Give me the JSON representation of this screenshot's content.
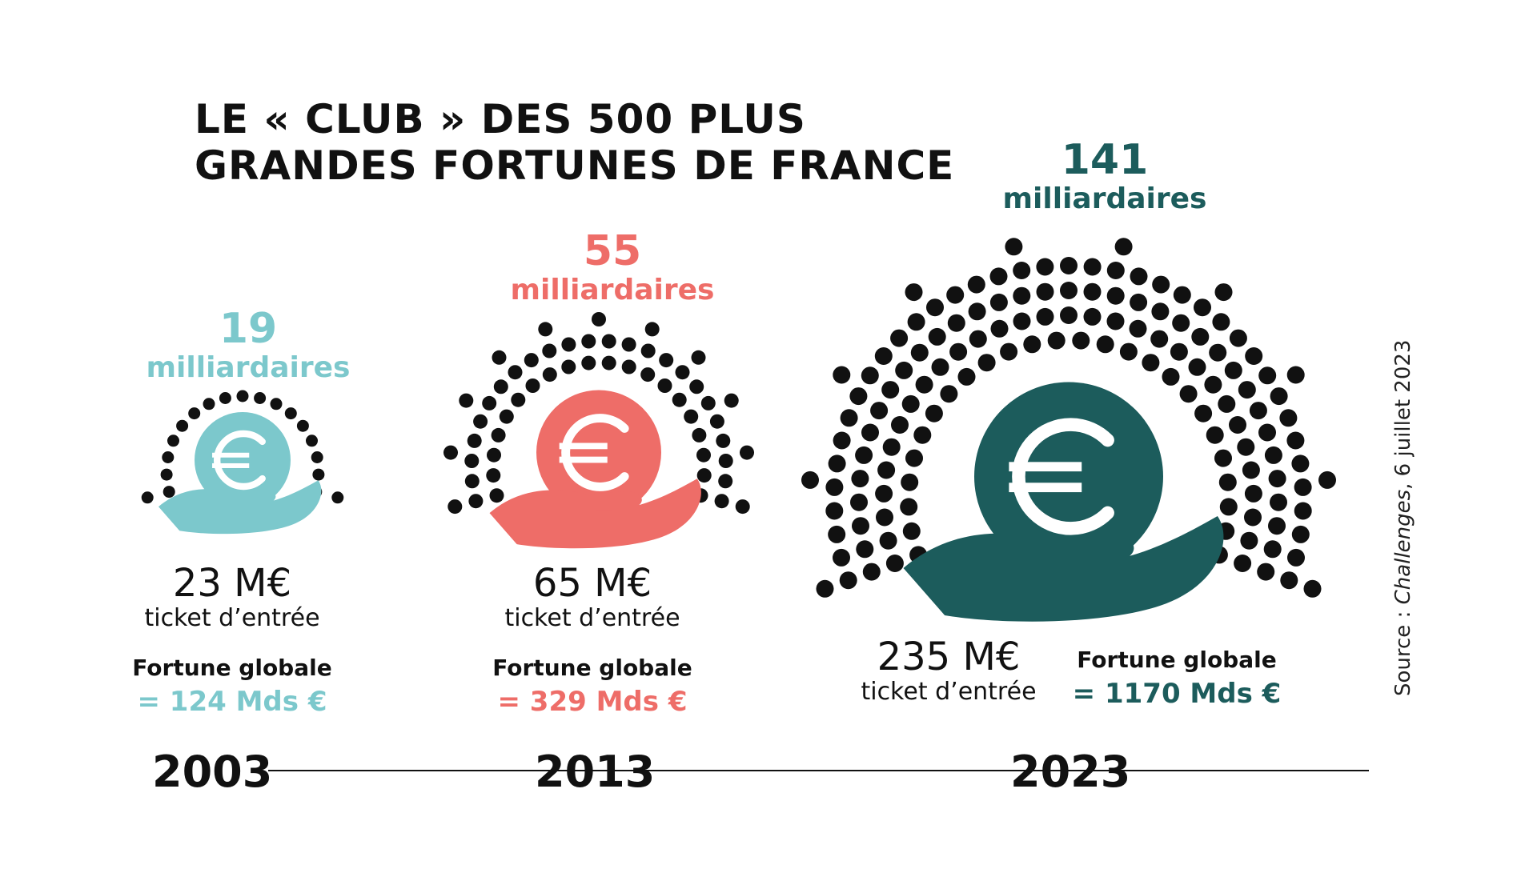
{
  "title": {
    "line1": "LE « CLUB » DES 500 PLUS",
    "line2": "GRANDES  FORTUNES DE FRANCE"
  },
  "colors": {
    "y2003": "#7cc8cc",
    "y2013": "#ee6d68",
    "y2023": "#1c5c5c",
    "dots": "#111111"
  },
  "icon": "hand-holding-euro-coin-icon",
  "source": {
    "prefix": "Source : ",
    "publication": "Challenges",
    "date": ", 6 juillet 2023"
  },
  "chart_data": {
    "type": "pictogram",
    "title": "LE « CLUB » DES 500 PLUS GRANDES  FORTUNES DE FRANCE",
    "series": [
      {
        "year": "2003",
        "billionaires": 19,
        "billionaires_label": "19",
        "billionaires_unit": "milliardaires",
        "entry_ticket_label": "23 M€",
        "entry_ticket_caption": "ticket d’entrée",
        "entry_ticket_meur": 23,
        "total_wealth_caption": "Fortune globale",
        "total_wealth_label": "= 124 Mds €",
        "total_wealth_bneur": 124
      },
      {
        "year": "2013",
        "billionaires": 55,
        "billionaires_label": "55",
        "billionaires_unit": "milliardaires",
        "entry_ticket_label": "65 M€",
        "entry_ticket_caption": "ticket d’entrée",
        "entry_ticket_meur": 65,
        "total_wealth_caption": "Fortune globale",
        "total_wealth_label": "= 329 Mds €",
        "total_wealth_bneur": 329
      },
      {
        "year": "2023",
        "billionaires": 141,
        "billionaires_label": "141",
        "billionaires_unit": "milliardaires",
        "entry_ticket_label": "235 M€",
        "entry_ticket_caption": "ticket d’entrée",
        "entry_ticket_meur": 235,
        "total_wealth_caption": "Fortune globale",
        "total_wealth_label": "= 1170 Mds €",
        "total_wealth_bneur": 1170
      }
    ]
  }
}
